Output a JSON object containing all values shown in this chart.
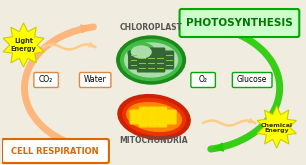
{
  "bg_color": "#f0ede0",
  "title_photosynthesis": "PHOTOSYNTHESIS",
  "title_cell_respiration": "CELL RESPIRATION",
  "label_chloroplast": "CHLOROPLAST",
  "label_mitochondria": "MITOCHONDRIA",
  "label_light_energy": "Light\nEnergy",
  "label_chemical_energy": "Chemical\nEnergy",
  "label_co2": "CO₂",
  "label_water": "Water",
  "label_o2": "O₂",
  "label_glucose": "Glucose",
  "photo_box_facecolor": "#ccffcc",
  "photo_box_edgecolor": "#00aa00",
  "photo_box_text_color": "#007700",
  "cell_resp_text_color": "#dd6600",
  "cell_resp_border_color": "#dd6600",
  "green_arrow_color": "#22cc00",
  "orange_arrow_color": "#ffb070",
  "light_energy_color": "#ffff00",
  "chemical_energy_color": "#ffff00",
  "starburst_outline": "#cccc00",
  "chloroplast_outer": "#1a8a1a",
  "chloroplast_mid": "#44bb44",
  "chloroplast_inner_bg": "#aaddaa",
  "chloroplast_thylakoid_dark": "#336633",
  "chloroplast_thylakoid_light": "#88cc44",
  "mitochondria_outer": "#cc2200",
  "mitochondria_mid": "#ee3300",
  "mitochondria_inner": "#ff8800",
  "mitochondria_cristae": "#ffdd00",
  "wavy_color": "#ffcc88",
  "label_box_green_ec": "#00aa00",
  "label_box_orange_ec": "#dd8844"
}
